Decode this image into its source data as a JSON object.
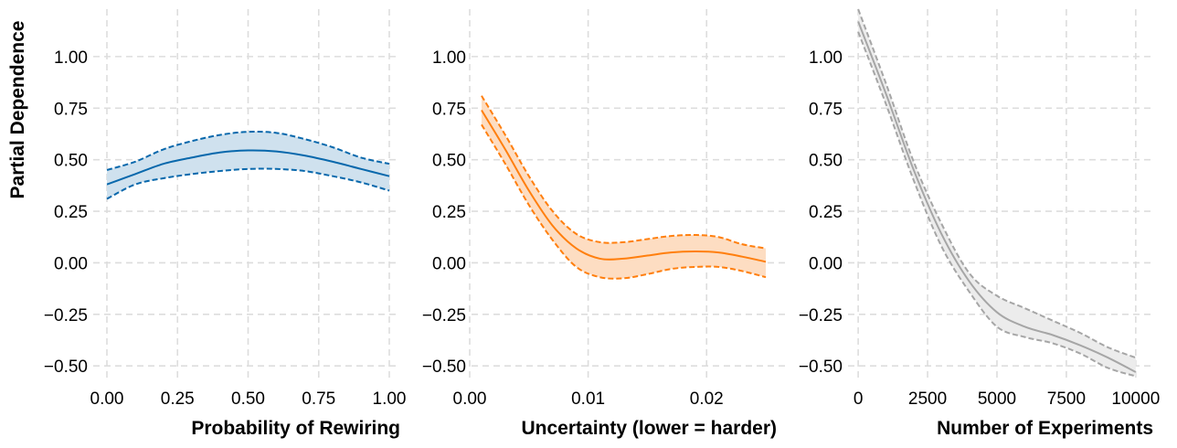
{
  "chart_data": [
    {
      "type": "line",
      "xlabel": "Probability of Rewiring",
      "ylabel": "Partial Dependence",
      "xlim": [
        0,
        1
      ],
      "ylim": [
        -0.57,
        1.23
      ],
      "xticks": [
        0,
        0.25,
        0.5,
        0.75,
        1.0
      ],
      "xtick_labels": [
        "0.00",
        "0.25",
        "0.50",
        "0.75",
        "1.00"
      ],
      "yticks": [
        -0.5,
        -0.25,
        0,
        0.25,
        0.5,
        0.75,
        1.0
      ],
      "ytick_labels": [
        "−0.50",
        "−0.25",
        "0.00",
        "0.25",
        "0.50",
        "0.75",
        "1.00"
      ],
      "color": "#0868ac",
      "fill_color": "#cfe1ee",
      "grid": true,
      "x": [
        0,
        0.1,
        0.2,
        0.3,
        0.4,
        0.5,
        0.6,
        0.7,
        0.8,
        0.9,
        1.0
      ],
      "mean": [
        0.38,
        0.43,
        0.48,
        0.51,
        0.535,
        0.545,
        0.54,
        0.52,
        0.49,
        0.455,
        0.42
      ],
      "upper": [
        0.45,
        0.49,
        0.55,
        0.59,
        0.62,
        0.635,
        0.63,
        0.6,
        0.56,
        0.51,
        0.48
      ],
      "lower": [
        0.31,
        0.38,
        0.41,
        0.43,
        0.445,
        0.455,
        0.455,
        0.445,
        0.42,
        0.39,
        0.35
      ]
    },
    {
      "type": "line",
      "xlabel": "Uncertainty (lower = harder)",
      "xlim": [
        0,
        0.026
      ],
      "ylim": [
        -0.57,
        1.23
      ],
      "xticks": [
        0,
        0.01,
        0.02
      ],
      "xtick_labels": [
        "0.00",
        "0.01",
        "0.02"
      ],
      "yticks": [
        -0.5,
        -0.25,
        0,
        0.25,
        0.5,
        0.75,
        1.0
      ],
      "ytick_labels": [
        "−0.50",
        "−0.25",
        "0.00",
        "0.25",
        "0.50",
        "0.75",
        "1.00"
      ],
      "color": "#ff7f0e",
      "fill_color": "#fdddc2",
      "grid": true,
      "x": [
        0.001,
        0.003,
        0.005,
        0.007,
        0.009,
        0.011,
        0.013,
        0.015,
        0.017,
        0.019,
        0.021,
        0.023,
        0.025
      ],
      "mean": [
        0.74,
        0.55,
        0.35,
        0.18,
        0.07,
        0.02,
        0.02,
        0.035,
        0.05,
        0.055,
        0.05,
        0.03,
        0.005
      ],
      "upper": [
        0.81,
        0.62,
        0.42,
        0.25,
        0.14,
        0.1,
        0.1,
        0.115,
        0.13,
        0.135,
        0.125,
        0.09,
        0.07
      ],
      "lower": [
        0.67,
        0.48,
        0.28,
        0.11,
        -0.02,
        -0.07,
        -0.075,
        -0.055,
        -0.03,
        -0.02,
        -0.02,
        -0.04,
        -0.07
      ]
    },
    {
      "type": "line",
      "xlabel": "Number of Experiments",
      "xlim": [
        -300,
        10400
      ],
      "ylim": [
        -0.57,
        1.23
      ],
      "xticks": [
        0,
        2500,
        5000,
        7500,
        10000
      ],
      "xtick_labels": [
        "0",
        "2500",
        "5000",
        "7500",
        "10000"
      ],
      "yticks": [
        -0.5,
        -0.25,
        0,
        0.25,
        0.5,
        0.75,
        1.0
      ],
      "ytick_labels": [
        "−0.50",
        "−0.25",
        "0.00",
        "0.25",
        "0.50",
        "0.75",
        "1.00"
      ],
      "color": "#a6a6a6",
      "fill_color": "#ececec",
      "grid": true,
      "x": [
        0,
        1000,
        2000,
        3000,
        4000,
        5000,
        6000,
        7000,
        8000,
        9000,
        10000
      ],
      "mean": [
        1.17,
        0.82,
        0.45,
        0.14,
        -0.09,
        -0.24,
        -0.31,
        -0.35,
        -0.4,
        -0.46,
        -0.53
      ],
      "upper": [
        1.23,
        0.87,
        0.49,
        0.19,
        -0.05,
        -0.16,
        -0.22,
        -0.28,
        -0.34,
        -0.41,
        -0.46
      ],
      "lower": [
        1.12,
        0.77,
        0.4,
        0.08,
        -0.14,
        -0.31,
        -0.36,
        -0.39,
        -0.44,
        -0.51,
        -0.55
      ]
    }
  ]
}
